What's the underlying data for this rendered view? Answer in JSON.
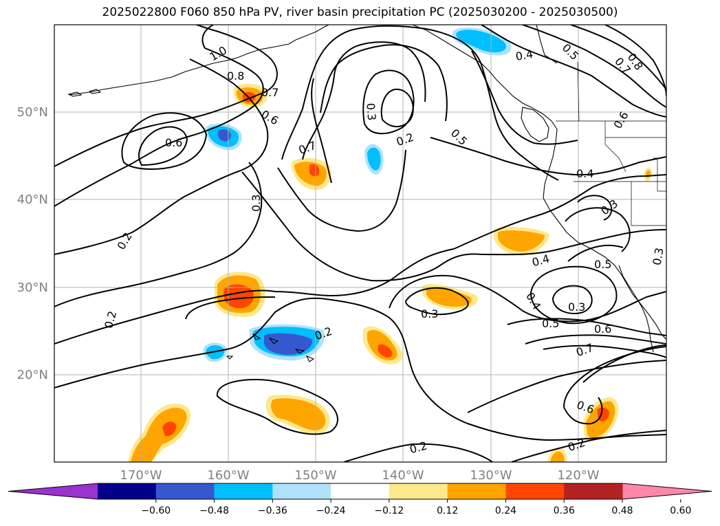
{
  "title": "2025022800 F060 850 hPa PV, river basin precipitation PC (2025030200 - 2025030500)",
  "map": {
    "lat_labels": [
      "50°N",
      "40°N",
      "30°N",
      "20°N"
    ],
    "lon_labels": [
      "170°W",
      "160°W",
      "150°W",
      "140°W",
      "130°W",
      "120°W"
    ],
    "contour_labels": [
      "1.0",
      "0.8",
      "0.7",
      "0.6",
      "0.6",
      "0.7",
      "0.3",
      "0.2",
      "0.5",
      "0.4",
      "0.5",
      "0.7",
      "0.8",
      "0.6",
      "0.4",
      "0.3",
      "0.3",
      "0.2",
      "0.2",
      "0.3",
      "0.4",
      "0.5",
      "0.4",
      "0.3",
      "0.3",
      "0.5",
      "0.6",
      "0.7",
      "0.2",
      "0.6",
      "0.2",
      "0.2"
    ]
  },
  "colorbar": {
    "colors": [
      "#9a32cd",
      "#00008b",
      "#3658cf",
      "#00bfff",
      "#afe1fa",
      "#ffffff",
      "#fde88a",
      "#ffa500",
      "#ff4500",
      "#b22222",
      "#ff88aa"
    ],
    "ticks": [
      "−0.60",
      "−0.48",
      "−0.36",
      "−0.24",
      "−0.12",
      "0.12",
      "0.24",
      "0.36",
      "0.48",
      "0.60"
    ]
  }
}
